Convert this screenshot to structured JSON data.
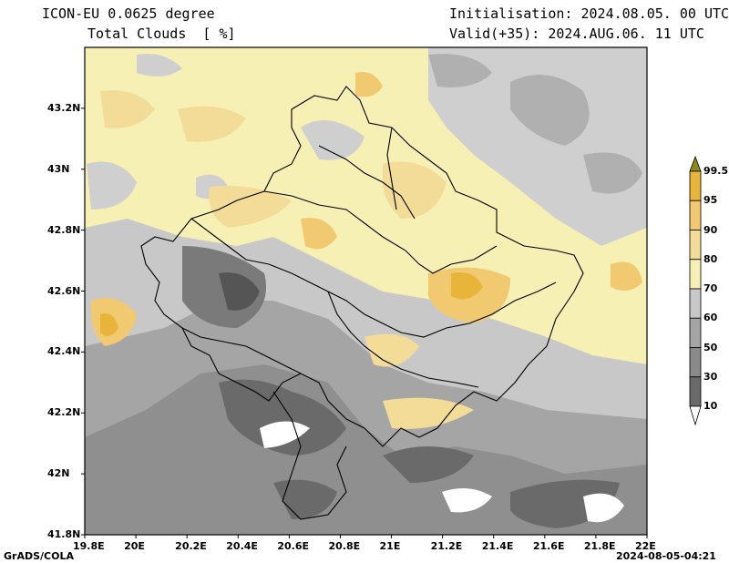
{
  "header": {
    "model": "ICON-EU 0.0625 degree",
    "variable": "Total Clouds  [ %]",
    "init": "Initialisation: 2024.08.05. 00 UTC",
    "valid": "Valid(+35): 2024.AUG.06. 11 UTC"
  },
  "footer": {
    "software": "GrADS/COLA",
    "timestamp": "2024-08-05-04:21"
  },
  "axes": {
    "lon_labels": [
      "19.8E",
      "20E",
      "20.2E",
      "20.4E",
      "20.6E",
      "20.8E",
      "21E",
      "21.2E",
      "21.4E",
      "21.6E",
      "21.8E",
      "22E"
    ],
    "lat_labels": [
      "43.2N",
      "43N",
      "42.8N",
      "42.6N",
      "42.4N",
      "42.2N",
      "42N",
      "41.8N"
    ],
    "lon_range": [
      19.8,
      22.0
    ],
    "lat_range": [
      41.8,
      43.4
    ]
  },
  "colorbar": {
    "levels": [
      "99.5",
      "95",
      "90",
      "80",
      "70",
      "60",
      "50",
      "30",
      "10"
    ],
    "colors": [
      "#8a8a18",
      "#e8b43a",
      "#f0c970",
      "#f2dc98",
      "#f6f0b4",
      "#c8c8c8",
      "#a5a5a5",
      "#8a8a8a",
      "#6a6a6a",
      "#4a4a4a"
    ]
  }
}
